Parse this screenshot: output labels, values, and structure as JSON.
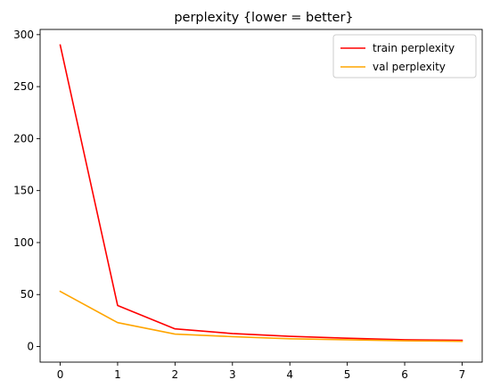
{
  "chart_data": {
    "type": "line",
    "title": "perplexity {lower = better}",
    "xlabel": "",
    "ylabel": "",
    "x": [
      0,
      1,
      2,
      3,
      4,
      5,
      6,
      7
    ],
    "xlim": [
      -0.35,
      7.35
    ],
    "ylim": [
      -15,
      305
    ],
    "xticks": [
      0,
      1,
      2,
      3,
      4,
      5,
      6,
      7
    ],
    "yticks": [
      0,
      50,
      100,
      150,
      200,
      250,
      300
    ],
    "grid": false,
    "legend_position": "top-right",
    "series": [
      {
        "name": "train perplexity",
        "color": "#ff0000",
        "values": [
          290,
          39.5,
          17,
          12.5,
          9.8,
          8,
          6.5,
          6
        ]
      },
      {
        "name": "val perplexity",
        "color": "#ffa500",
        "values": [
          53,
          23,
          12,
          9.5,
          7.5,
          6.5,
          5.5,
          5
        ]
      }
    ]
  }
}
